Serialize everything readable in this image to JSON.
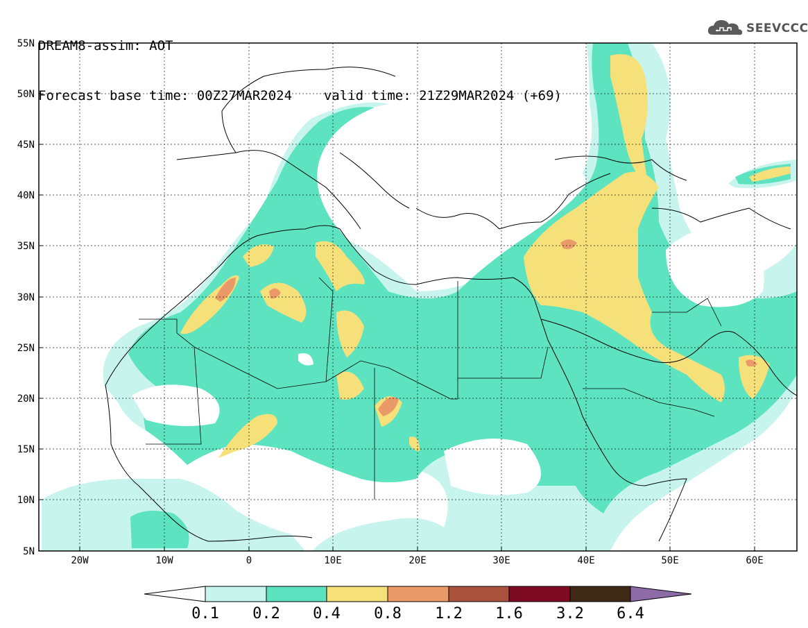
{
  "header": {
    "line1": "DREAM8-assim: AOT",
    "line2_base": "Forecast base time: 00Z27MAR2024",
    "line2_valid": "valid time: 21Z29MAR2024 (+69)"
  },
  "logo": {
    "text": "SEEVCCC",
    "icon": "cloud-icon"
  },
  "map": {
    "lon_range": [
      -25,
      65
    ],
    "lat_range": [
      5,
      55
    ],
    "lon_ticks": [
      "20W",
      "10W",
      "0",
      "10E",
      "20E",
      "30E",
      "40E",
      "50E",
      "60E"
    ],
    "lat_ticks": [
      "55N",
      "50N",
      "45N",
      "40N",
      "35N",
      "30N",
      "25N",
      "20N",
      "15N",
      "10N",
      "5N"
    ]
  },
  "colorbar": {
    "labels": [
      "0.1",
      "0.2",
      "0.4",
      "0.8",
      "1.2",
      "1.6",
      "3.2",
      "6.4"
    ],
    "colors": [
      "#ffffff",
      "#c8f4ee",
      "#5de3bf",
      "#f6e07a",
      "#e99a68",
      "#a9533f",
      "#7b0a22",
      "#3e2816",
      "#8e6aa6"
    ]
  }
}
